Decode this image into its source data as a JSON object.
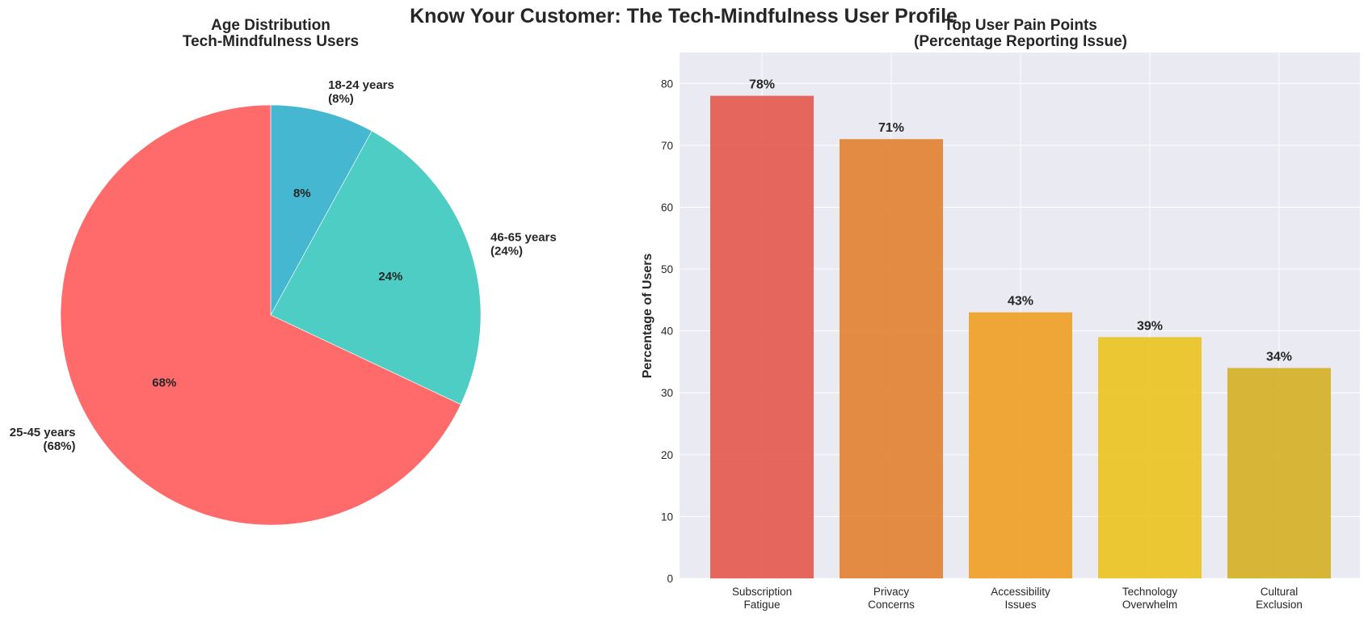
{
  "title": "Know Your Customer: The Tech-Mindfulness User Profile",
  "chart_data": [
    {
      "type": "pie",
      "title_lines": [
        "Age Distribution",
        "Tech-Mindfulness Users"
      ],
      "start_angle_deg": 90,
      "direction": "clockwise",
      "slices": [
        {
          "label": "18-24 years",
          "value": 8,
          "pct_label": "8%",
          "color": "#45B7D1"
        },
        {
          "label": "46-65 years",
          "value": 24,
          "pct_label": "24%",
          "color": "#4ECDC4"
        },
        {
          "label": "25-45 years",
          "value": 68,
          "pct_label": "68%",
          "color": "#FF6B6B"
        }
      ],
      "legend": "none"
    },
    {
      "type": "bar",
      "title_lines": [
        "Top User Pain Points",
        "(Percentage Reporting Issue)"
      ],
      "categories": [
        [
          "Subscription",
          "Fatigue"
        ],
        [
          "Privacy",
          "Concerns"
        ],
        [
          "Accessibility",
          "Issues"
        ],
        [
          "Technology",
          "Overwhelm"
        ],
        [
          "Cultural",
          "Exclusion"
        ]
      ],
      "values": [
        78,
        71,
        43,
        39,
        34
      ],
      "value_labels": [
        "78%",
        "71%",
        "43%",
        "39%",
        "34%"
      ],
      "colors": [
        "#E4584C",
        "#E2812F",
        "#F19D22",
        "#EBC31F",
        "#D4AF22"
      ],
      "ylabel": "Percentage of Users",
      "xlabel": "",
      "ylim": [
        0,
        85
      ],
      "yticks": [
        0,
        10,
        20,
        30,
        40,
        50,
        60,
        70,
        80
      ],
      "grid": true,
      "background": "#EAEAF2"
    }
  ]
}
